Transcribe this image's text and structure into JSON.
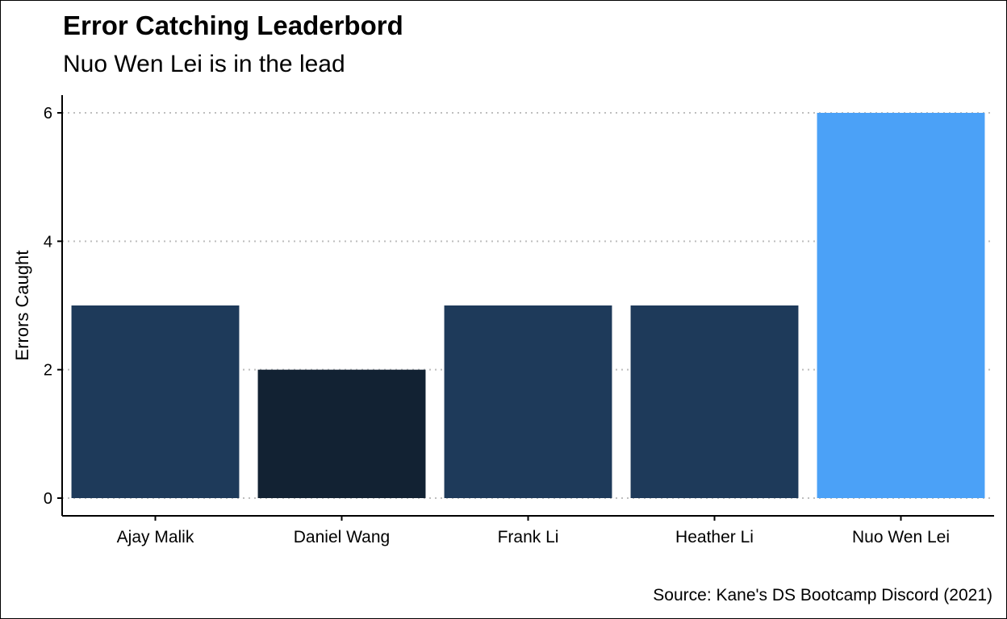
{
  "chart_data": {
    "type": "bar",
    "title": "Error Catching Leaderbord",
    "subtitle": "Nuo Wen Lei is in the lead",
    "caption": "Source: Kane's DS Bootcamp Discord (2021)",
    "xlabel": "",
    "ylabel": "Errors Caught",
    "categories": [
      "Ajay Malik",
      "Daniel Wang",
      "Frank Li",
      "Heather Li",
      "Nuo Wen Lei"
    ],
    "values": [
      3,
      2,
      3,
      3,
      6
    ],
    "bar_colors": [
      "#1E3A5A",
      "#122233",
      "#1E3A5A",
      "#1E3A5A",
      "#4BA1F7"
    ],
    "ylim": [
      0,
      6
    ],
    "yticks": [
      0,
      2,
      4,
      6
    ],
    "grid": "horizontal dotted",
    "legend": "none",
    "colors": {
      "gridline": "#BEBEBE",
      "axis": "#000000"
    }
  }
}
